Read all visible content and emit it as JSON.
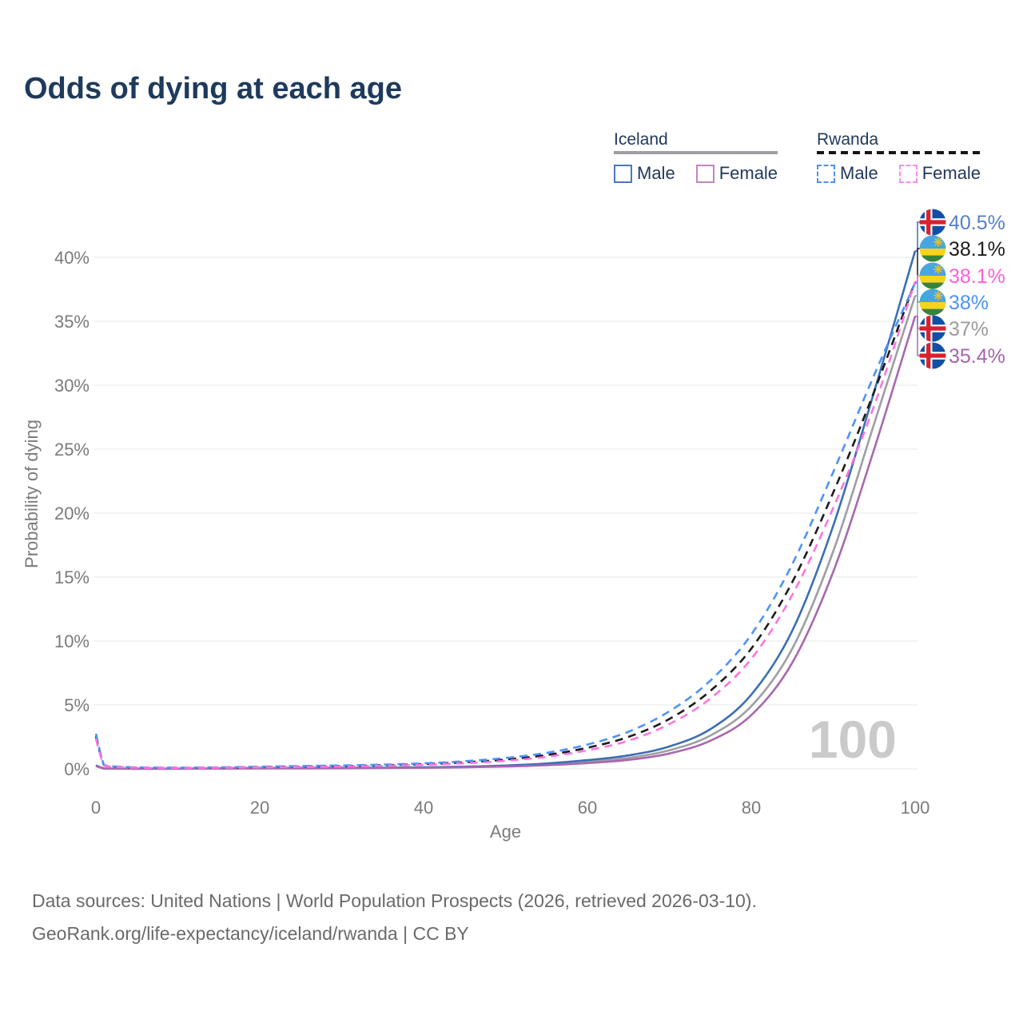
{
  "chart_data": {
    "type": "line",
    "title": "Odds of dying at each age",
    "xlabel": "Age",
    "ylabel": "Probability of dying",
    "xlim": [
      0,
      100
    ],
    "ylim_pct": [
      0,
      42
    ],
    "x_ticks": [
      0,
      20,
      40,
      60,
      80,
      100
    ],
    "y_ticks_pct": [
      0,
      5,
      10,
      15,
      20,
      25,
      30,
      35,
      40
    ],
    "grid": true,
    "legend_position": "top-right",
    "hover_value": "100",
    "ages": [
      0,
      1,
      2,
      5,
      10,
      15,
      20,
      25,
      30,
      35,
      40,
      45,
      50,
      55,
      60,
      65,
      70,
      75,
      80,
      85,
      90,
      95,
      100
    ],
    "series": [
      {
        "key": "iceland-both",
        "name": "Iceland",
        "country": "Iceland",
        "sex": "both",
        "line": "solid",
        "color": "#9e9ea3",
        "flag": "iceland",
        "end_label": "37%",
        "end_label_color": "#9b9b9b",
        "values_pct": [
          0.25,
          0.025,
          0.018,
          0.01,
          0.01,
          0.025,
          0.045,
          0.05,
          0.06,
          0.07,
          0.1,
          0.14,
          0.22,
          0.35,
          0.55,
          0.85,
          1.45,
          2.6,
          4.9,
          9.4,
          17.0,
          27.0,
          37.0
        ]
      },
      {
        "key": "iceland-male",
        "name": "Iceland Male",
        "country": "Iceland",
        "sex": "male",
        "line": "solid",
        "color": "#3a6fb5",
        "flag": "iceland",
        "end_label": "40.5%",
        "end_label_color": "#5580c6",
        "values_pct": [
          0.27,
          0.03,
          0.02,
          0.01,
          0.01,
          0.03,
          0.06,
          0.07,
          0.08,
          0.09,
          0.12,
          0.17,
          0.26,
          0.42,
          0.68,
          1.05,
          1.75,
          3.1,
          5.8,
          10.8,
          19.0,
          29.5,
          40.5
        ]
      },
      {
        "key": "iceland-female",
        "name": "Iceland Female",
        "country": "Iceland",
        "sex": "female",
        "line": "solid",
        "color": "#a968ae",
        "flag": "iceland",
        "end_label": "35.4%",
        "end_label_color": "#a565aa",
        "values_pct": [
          0.22,
          0.02,
          0.015,
          0.01,
          0.01,
          0.02,
          0.03,
          0.035,
          0.045,
          0.06,
          0.08,
          0.12,
          0.18,
          0.28,
          0.45,
          0.7,
          1.2,
          2.2,
          4.2,
          8.3,
          15.4,
          25.0,
          35.4
        ]
      },
      {
        "key": "rwanda-both",
        "name": "Rwanda",
        "country": "Rwanda",
        "sex": "both",
        "line": "dashed",
        "color": "#1c1c1c",
        "flag": "rwanda",
        "end_label": "38.1%",
        "end_label_color": "#1b1b1b",
        "values_pct": [
          2.55,
          0.27,
          0.18,
          0.1,
          0.08,
          0.1,
          0.14,
          0.18,
          0.22,
          0.28,
          0.37,
          0.51,
          0.73,
          1.08,
          1.65,
          2.5,
          3.9,
          6.1,
          9.4,
          14.6,
          21.6,
          29.5,
          38.1
        ]
      },
      {
        "key": "rwanda-male",
        "name": "Rwanda Male",
        "country": "Rwanda",
        "sex": "male",
        "line": "dashed",
        "color": "#4d93f7",
        "flag": "rwanda",
        "end_label": "38%",
        "end_label_color": "#4d93f7",
        "values_pct": [
          2.75,
          0.3,
          0.2,
          0.12,
          0.09,
          0.12,
          0.17,
          0.22,
          0.27,
          0.33,
          0.43,
          0.6,
          0.85,
          1.25,
          1.9,
          2.9,
          4.5,
          6.9,
          10.5,
          16.0,
          23.2,
          30.8,
          38.0
        ]
      },
      {
        "key": "rwanda-female",
        "name": "Rwanda Female",
        "country": "Rwanda",
        "sex": "female",
        "line": "dashed",
        "color": "#ff74e0",
        "flag": "rwanda",
        "end_label": "38.1%",
        "end_label_color": "#ff5fd8",
        "values_pct": [
          2.35,
          0.24,
          0.16,
          0.09,
          0.07,
          0.09,
          0.12,
          0.15,
          0.18,
          0.24,
          0.32,
          0.44,
          0.63,
          0.94,
          1.45,
          2.2,
          3.5,
          5.5,
          8.6,
          13.6,
          20.4,
          28.4,
          38.1
        ]
      }
    ],
    "flag_colors": {
      "iceland": {
        "blue": "#1150a4",
        "white": "#ffffff",
        "red": "#d8212f"
      },
      "rwanda": {
        "blue": "#47a6e0",
        "yellow": "#f7d31f",
        "green": "#39833c",
        "sun": "#e8c223"
      }
    }
  },
  "legend": {
    "groups": [
      {
        "label": "Iceland",
        "line_color": "#9e9ea3",
        "line_style": "solid",
        "items": [
          {
            "label": "Male",
            "color": "#4a79b8",
            "style": "solid"
          },
          {
            "label": "Female",
            "color": "#c184c1",
            "style": "solid"
          }
        ]
      },
      {
        "label": "Rwanda",
        "line_color": "#161616",
        "line_style": "dashed",
        "items": [
          {
            "label": "Male",
            "color": "#4d93f7",
            "style": "dashed"
          },
          {
            "label": "Female",
            "color": "#ff8ae8",
            "style": "dashed"
          }
        ]
      }
    ]
  },
  "footer": {
    "line1": "Data sources: United Nations | World Population Prospects (2026, retrieved 2026-03-10).",
    "line2": "GeoRank.org/life-expectancy/iceland/rwanda | CC BY"
  }
}
